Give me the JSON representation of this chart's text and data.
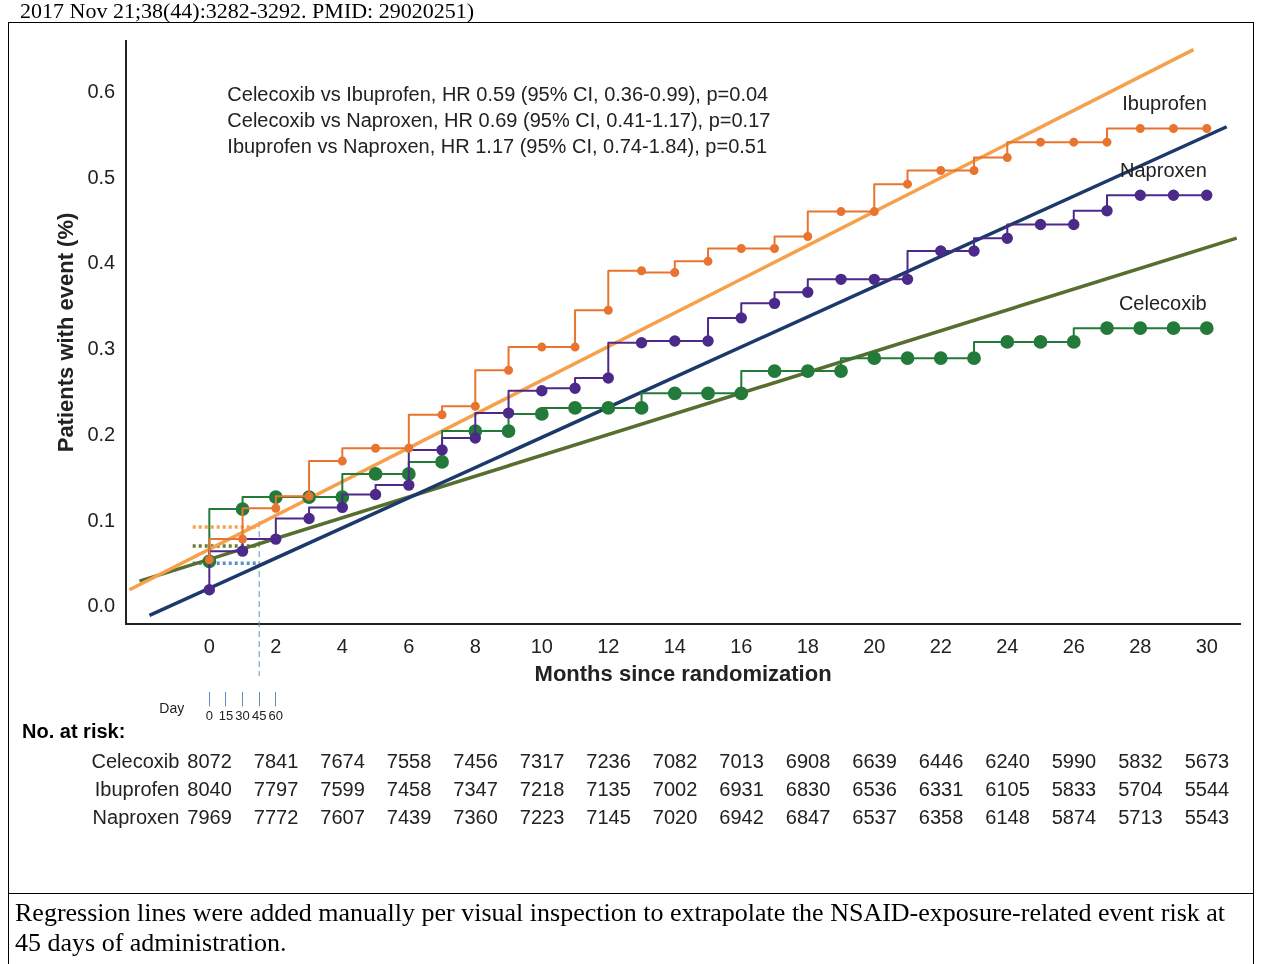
{
  "chart_data": {
    "type": "step",
    "xlabel": "Months since randomization",
    "ylabel": "Patients with event (%)",
    "x2label": "Day",
    "x": [
      0,
      1,
      2,
      3,
      4,
      5,
      6,
      7,
      8,
      9,
      10,
      11,
      12,
      13,
      14,
      15,
      16,
      17,
      18,
      19,
      20,
      21,
      22,
      23,
      24,
      25,
      26,
      27,
      28,
      29,
      30
    ],
    "series": [
      {
        "name": "Ibuprofen",
        "color": "#e8742f",
        "marker": "circle",
        "values": [
          0.055,
          0.079,
          0.115,
          0.129,
          0.17,
          0.185,
          0.185,
          0.224,
          0.234,
          0.276,
          0.303,
          0.303,
          0.346,
          0.392,
          0.39,
          0.403,
          0.418,
          0.418,
          0.432,
          0.461,
          0.461,
          0.493,
          0.509,
          0.509,
          0.524,
          0.542,
          0.542,
          0.542,
          0.558,
          0.558,
          0.558
        ]
      },
      {
        "name": "Naproxen",
        "color": "#4b2a8a",
        "marker": "circle",
        "values": [
          0.02,
          0.065,
          0.079,
          0.103,
          0.116,
          0.131,
          0.142,
          0.183,
          0.197,
          0.226,
          0.252,
          0.255,
          0.267,
          0.308,
          0.31,
          0.31,
          0.337,
          0.354,
          0.367,
          0.382,
          0.382,
          0.382,
          0.415,
          0.415,
          0.43,
          0.446,
          0.446,
          0.462,
          0.48,
          0.48,
          0.48
        ]
      },
      {
        "name": "Celecoxib",
        "color": "#237a3a",
        "marker": "circle",
        "values": [
          0.053,
          0.114,
          0.128,
          0.128,
          0.128,
          0.155,
          0.155,
          0.169,
          0.205,
          0.205,
          0.225,
          0.232,
          0.232,
          0.232,
          0.249,
          0.249,
          0.249,
          0.275,
          0.275,
          0.275,
          0.29,
          0.29,
          0.29,
          0.29,
          0.309,
          0.309,
          0.309,
          0.325,
          0.325,
          0.325,
          0.325
        ]
      },
      {
        "type": "line",
        "color": "#f7a04b",
        "marker": "none",
        "x": [
          -2.4,
          29.6
        ],
        "values": [
          0.02,
          0.65
        ]
      },
      {
        "type": "line",
        "color": "#1b3a6b",
        "marker": "none",
        "x": [
          -1.8,
          30.6
        ],
        "values": [
          -0.01,
          0.56
        ]
      },
      {
        "type": "line",
        "color": "#566e2e",
        "marker": "none",
        "x": [
          -2.1,
          30.9
        ],
        "values": [
          0.03,
          0.43
        ]
      },
      {
        "type": "line",
        "color": "#f7a04b",
        "marker": "none",
        "line_style": "dotted",
        "x": [
          -0.5,
          1.5
        ],
        "values": [
          0.093,
          0.093
        ]
      },
      {
        "type": "line",
        "color": "#6b7a3a",
        "marker": "none",
        "line_style": "dotted",
        "x": [
          -0.5,
          1.5
        ],
        "values": [
          0.071,
          0.071
        ]
      },
      {
        "type": "line",
        "color": "#5b8fc9",
        "marker": "none",
        "line_style": "dotted",
        "x": [
          -0.5,
          1.5
        ],
        "values": [
          0.051,
          0.051
        ]
      }
    ],
    "ref_lines": [
      {
        "axis": "x",
        "value": 1.5,
        "color": "#5b8fc9",
        "line_style": "dashed"
      }
    ],
    "xlim": [
      -2.5,
      31
    ],
    "ylim": [
      -0.02,
      0.66
    ],
    "xticks": [
      0,
      2,
      4,
      6,
      8,
      10,
      12,
      14,
      16,
      18,
      20,
      22,
      24,
      26,
      28,
      30
    ],
    "yticks": [
      {
        "value": 0,
        "label": "0.0"
      },
      0.1,
      0.2,
      0.3,
      0.4,
      0.5,
      0.6
    ],
    "x2lim": [
      -75,
      930
    ],
    "x2ticks": [
      0,
      15,
      30,
      45,
      60
    ],
    "grid": false,
    "legend": false,
    "annotations": [
      "2017 Nov 21;38(44):3282-3292. PMID: 29020251)",
      "Celecoxib vs Ibuprofen, HR 0.59 (95% CI, 0.36-0.99), p=0.04",
      "Celecoxib vs Naproxen, HR 0.69 (95% CI, 0.41-1.17), p=0.17",
      "Ibuprofen vs Naproxen, HR 1.17 (95% CI, 0.74-1.84), p=0.51",
      "No. at risk:",
      "Celecoxib 8072 7841 7674 7558 7456 7317 7236 7082 7013 6908 6639 6446 6240 5990 5832 5673",
      "Ibuprofen 8040 7797 7599 7458 7347 7218 7135 7002 6931 6830 6536 6331 6105 5833 5704 5544",
      "Naproxen 7969 7772 7607 7439 7360 7223 7145 7020 6942 6847 6537 6358 6148 5874 5713 5543",
      "Regression lines were added manually per visual inspection to extrapolate the NSAID-exposure-related event risk at 45 days of administration."
    ]
  }
}
